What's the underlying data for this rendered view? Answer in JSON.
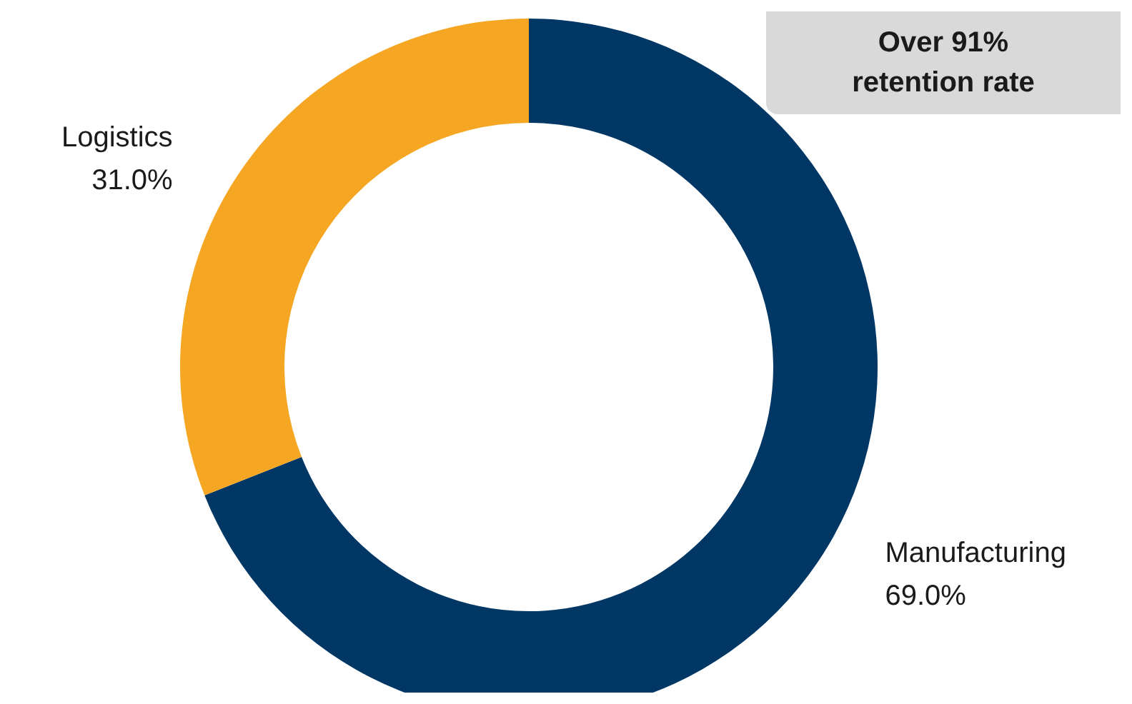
{
  "chart_data": {
    "type": "donut",
    "categories": [
      "Manufacturing",
      "Logistics"
    ],
    "values": [
      69.0,
      31.0
    ],
    "colors": [
      "#003764",
      "#f5a623"
    ],
    "value_labels": [
      "69.0%",
      "31.0%"
    ],
    "annotations": [
      "Over 91%\nretention rate"
    ],
    "legend": false
  }
}
